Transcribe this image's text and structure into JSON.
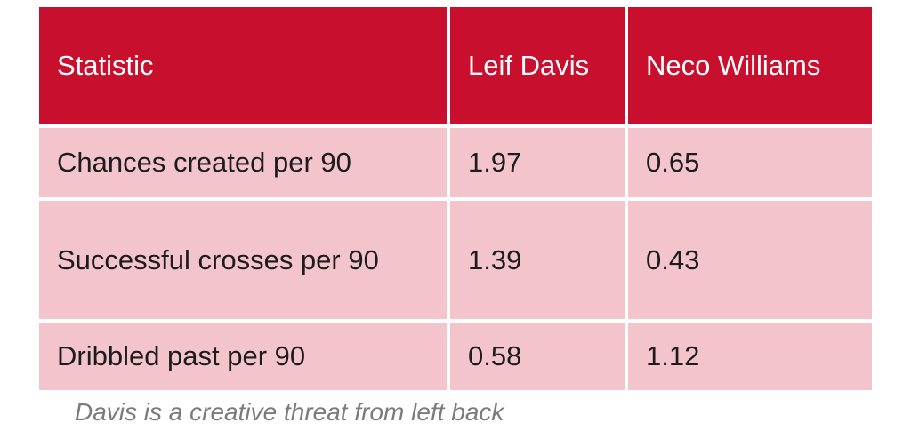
{
  "table": {
    "headers": [
      "Statistic",
      "Leif Davis",
      "Neco Williams"
    ],
    "rows": [
      [
        "Chances created per 90",
        "1.97",
        "0.65"
      ],
      [
        "Successful crosses per 90",
        "1.39",
        "0.43"
      ],
      [
        "Dribbled past per 90",
        "0.58",
        "1.12"
      ]
    ]
  },
  "caption": "Davis is a creative threat from left back",
  "colors": {
    "header_bg": "#c8102e",
    "header_text": "#ffffff",
    "cell_bg": "#f3c4cb",
    "cell_text": "#1c1c1c",
    "caption_text": "#7b7b7b"
  }
}
